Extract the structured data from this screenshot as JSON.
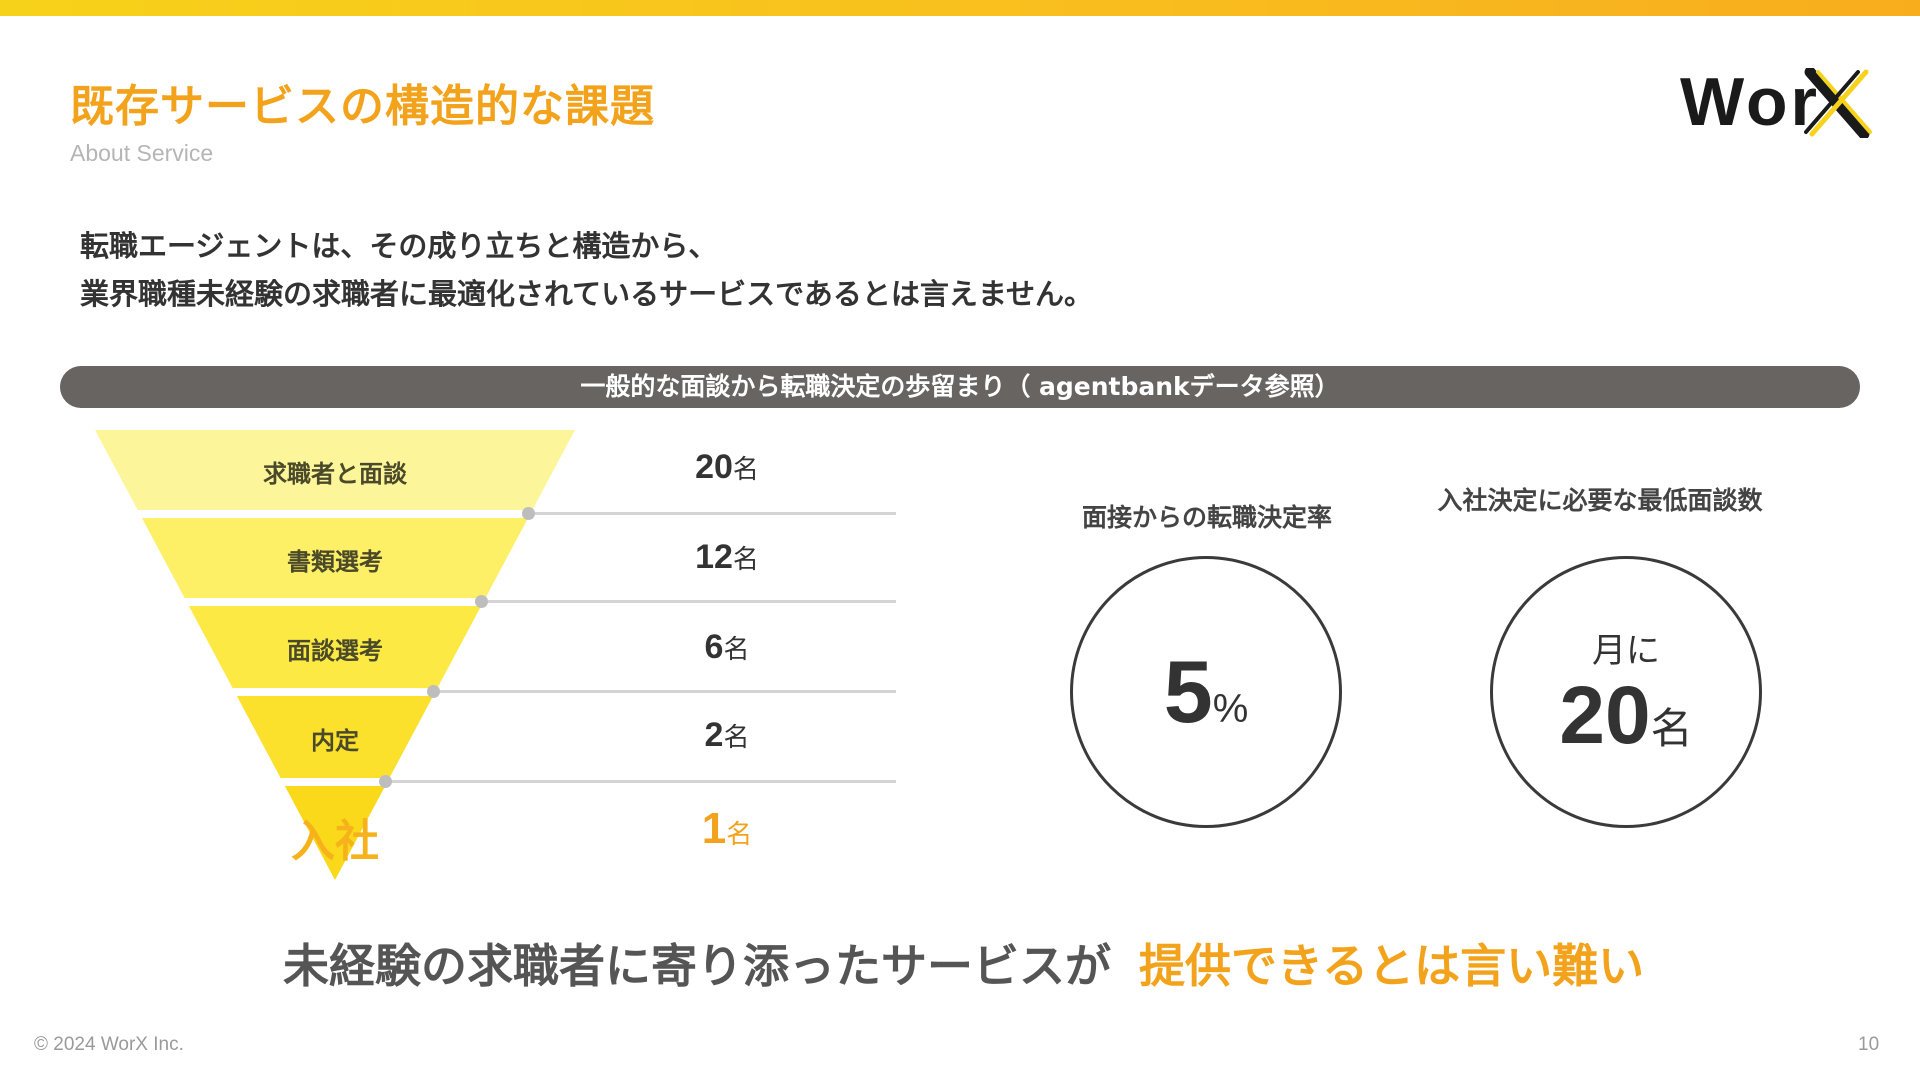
{
  "header": {
    "title": "既存サービスの構造的な課題",
    "subtitle": "About Service",
    "logo_text": "Wor"
  },
  "intro": {
    "line1": "転職エージェントは、その成り立ちと構造から、",
    "line2": "業界職種未経験の求職者に最適化されているサービスであるとは言えません。"
  },
  "banner": "一般的な面談から転職決定の歩留まり（ agentbankデータ参照）",
  "chart_data": {
    "type": "funnel",
    "categories": [
      "求職者と面談",
      "書類選考",
      "面談選考",
      "内定",
      "入社"
    ],
    "values": [
      20,
      12,
      6,
      2,
      1
    ],
    "unit": "名",
    "colors": [
      "#fdf59a",
      "#fdf066",
      "#fce944",
      "#fbe02c",
      "#f9d91a"
    ]
  },
  "stats": {
    "rate": {
      "label": "面接からの転職決定率",
      "value": "5",
      "unit": "%"
    },
    "min_interviews": {
      "label": "入社決定に必要な最低面談数",
      "prefix": "月に",
      "value": "20",
      "unit": "名"
    }
  },
  "conclusion": {
    "part1": "未経験の求職者に寄り添ったサービスが",
    "part2": "提供できるとは言い難い"
  },
  "footer": {
    "copyright": "© 2024 WorX Inc.",
    "page": "10"
  },
  "colors": {
    "accent": "#f3a31b",
    "banner": "#676462"
  }
}
